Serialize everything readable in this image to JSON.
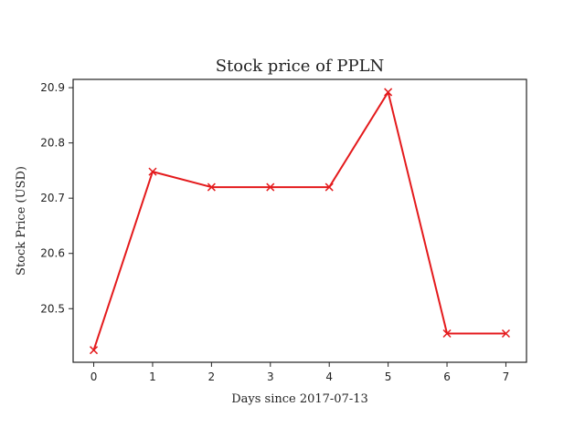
{
  "chart_data": {
    "type": "line",
    "title": "Stock price of PPLN",
    "xlabel": "Days since 2017-07-13",
    "ylabel": "Stock Price (USD)",
    "x": [
      0,
      1,
      2,
      3,
      4,
      5,
      6,
      7
    ],
    "series": [
      {
        "values": [
          20.425,
          20.748,
          20.72,
          20.72,
          20.72,
          20.892,
          20.455,
          20.455
        ],
        "color": "#e41a1c",
        "marker": "x"
      }
    ],
    "xlim": [
      -0.35,
      7.35
    ],
    "ylim": [
      20.403,
      20.915
    ],
    "xticks": [
      0,
      1,
      2,
      3,
      4,
      5,
      6,
      7
    ],
    "yticks": [
      20.5,
      20.6,
      20.7,
      20.8,
      20.9
    ],
    "ytick_labels": [
      "20.5",
      "20.6",
      "20.7",
      "20.8",
      "20.9"
    ],
    "grid": false,
    "legend": "none"
  }
}
